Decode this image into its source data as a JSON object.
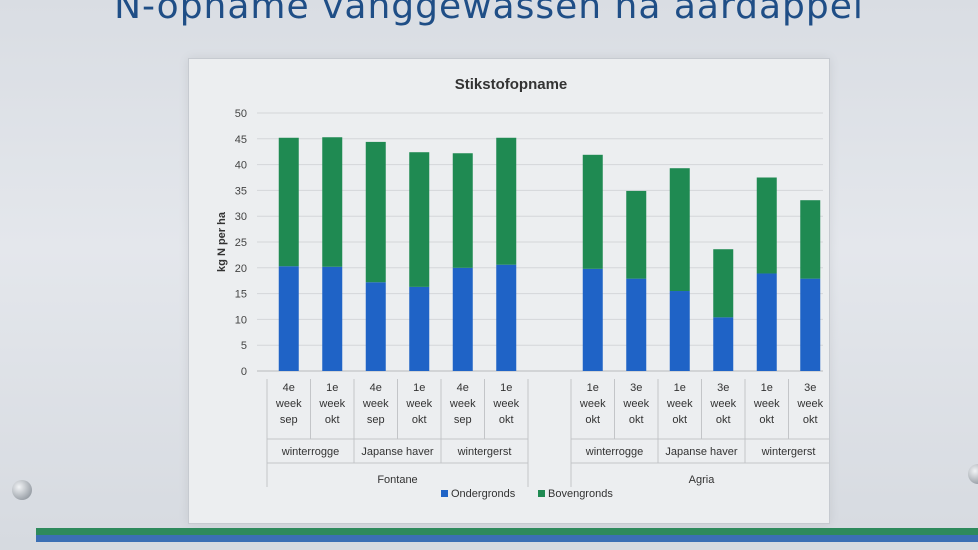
{
  "poster": {
    "title": "N-opname vanggewassen na aardappel"
  },
  "colors": {
    "ondergronds": "#1f63c6",
    "bovengronds": "#1f8a52",
    "band_green": "#2e8a5c",
    "band_blue": "#3b6fb4"
  },
  "chart_data": {
    "type": "bar",
    "stacked": true,
    "title": "Stikstofopname",
    "xlabel": "",
    "ylabel": "kg N per ha",
    "ylim": [
      0,
      50
    ],
    "yticks": [
      0,
      5,
      10,
      15,
      20,
      25,
      30,
      35,
      40,
      45,
      50
    ],
    "grid": true,
    "legend_position": "bottom",
    "groups": [
      {
        "name": "Fontane",
        "subgroups": [
          {
            "name": "winterrogge",
            "categories": [
              [
                "4e",
                "week",
                "sep"
              ],
              [
                "1e",
                "week",
                "okt"
              ]
            ]
          },
          {
            "name": "Japanse haver",
            "categories": [
              [
                "4e",
                "week",
                "sep"
              ],
              [
                "1e",
                "week",
                "okt"
              ]
            ]
          },
          {
            "name": "wintergerst",
            "categories": [
              [
                "4e",
                "week",
                "sep"
              ],
              [
                "1e",
                "week",
                "okt"
              ]
            ]
          }
        ]
      },
      {
        "name": "Agria",
        "subgroups": [
          {
            "name": "winterrogge",
            "categories": [
              [
                "1e",
                "week",
                "okt"
              ],
              [
                "3e",
                "week",
                "okt"
              ]
            ]
          },
          {
            "name": "Japanse haver",
            "categories": [
              [
                "1e",
                "week",
                "okt"
              ],
              [
                "3e",
                "week",
                "okt"
              ]
            ]
          },
          {
            "name": "wintergerst",
            "categories": [
              [
                "1e",
                "week",
                "okt"
              ],
              [
                "3e",
                "week",
                "okt"
              ]
            ]
          }
        ]
      }
    ],
    "series": [
      {
        "name": "Ondergronds",
        "values": [
          20.3,
          20.2,
          17.2,
          16.3,
          20.0,
          20.6,
          19.8,
          17.9,
          15.5,
          10.4,
          18.9,
          17.9
        ]
      },
      {
        "name": "Bovengronds",
        "values": [
          24.9,
          25.1,
          27.2,
          26.1,
          22.2,
          24.6,
          22.1,
          17.0,
          23.8,
          13.2,
          18.6,
          15.2
        ]
      }
    ]
  }
}
